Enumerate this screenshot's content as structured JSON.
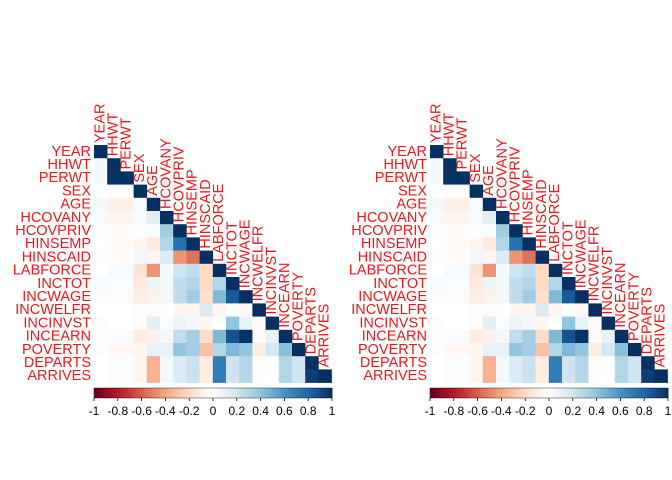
{
  "chart_data": [
    {
      "type": "heatmap",
      "variables": [
        "YEAR",
        "HHWT",
        "PERWT",
        "SEX",
        "AGE",
        "HCOVANY",
        "HCOVPRIV",
        "HINSEMP",
        "HINSCAID",
        "LABFORCE",
        "INCTOT",
        "INCWAGE",
        "INCWELFR",
        "INCINVST",
        "INCEARN",
        "POVERTY",
        "DEPARTS",
        "ARRIVES"
      ],
      "shape": "lower-triangle",
      "matrix": [
        [
          1
        ],
        [
          0.04,
          1
        ],
        [
          0.04,
          0.99,
          1
        ],
        [
          0.0,
          0.02,
          0.02,
          1
        ],
        [
          0.05,
          -0.08,
          -0.09,
          0.03,
          1
        ],
        [
          0.03,
          -0.05,
          -0.05,
          0.03,
          0.12,
          1
        ],
        [
          0.01,
          -0.02,
          -0.02,
          0.01,
          0.02,
          0.35,
          1
        ],
        [
          0.0,
          -0.01,
          -0.01,
          -0.05,
          -0.12,
          0.3,
          0.75,
          1
        ],
        [
          0.01,
          -0.02,
          -0.02,
          0.06,
          -0.05,
          0.15,
          -0.45,
          -0.55,
          1
        ],
        [
          0.0,
          0.03,
          0.03,
          -0.15,
          -0.45,
          0.05,
          0.2,
          0.25,
          -0.2,
          1
        ],
        [
          0.03,
          0.02,
          0.02,
          -0.12,
          0.08,
          0.06,
          0.25,
          0.3,
          -0.2,
          0.3,
          1
        ],
        [
          0.02,
          0.02,
          0.02,
          -0.1,
          -0.08,
          0.05,
          0.25,
          0.35,
          -0.18,
          0.45,
          0.85,
          1
        ],
        [
          0.0,
          0.0,
          0.0,
          0.02,
          -0.02,
          0.01,
          -0.05,
          -0.05,
          0.15,
          -0.05,
          0.0,
          -0.03,
          1
        ],
        [
          0.02,
          0.0,
          0.0,
          -0.02,
          0.12,
          0.02,
          0.08,
          0.05,
          -0.05,
          0.0,
          0.4,
          0.1,
          -0.01,
          1
        ],
        [
          0.02,
          0.02,
          0.02,
          -0.1,
          -0.08,
          0.05,
          0.25,
          0.35,
          -0.18,
          0.45,
          0.87,
          0.99,
          -0.03,
          0.1,
          1
        ],
        [
          0.02,
          -0.04,
          -0.04,
          -0.05,
          0.1,
          0.1,
          0.4,
          0.35,
          -0.3,
          0.3,
          0.45,
          0.4,
          -0.1,
          0.18,
          0.42,
          1
        ],
        [
          0.0,
          0.02,
          0.02,
          -0.05,
          -0.35,
          0.05,
          0.15,
          0.22,
          -0.1,
          0.7,
          0.2,
          0.3,
          -0.02,
          0.0,
          0.3,
          0.2,
          1
        ],
        [
          0.0,
          0.02,
          0.02,
          -0.05,
          -0.35,
          0.05,
          0.15,
          0.22,
          -0.1,
          0.7,
          0.2,
          0.3,
          -0.02,
          0.0,
          0.3,
          0.2,
          0.95,
          1
        ]
      ],
      "colorbar": {
        "range": [
          -1,
          1
        ],
        "tick_labels": [
          "-1",
          "-0.8",
          "-0.6",
          "-0.4",
          "-0.2",
          "0",
          "0.2",
          "0.4",
          "0.6",
          "0.8",
          "1"
        ],
        "tick_values": [
          -1,
          -0.8,
          -0.6,
          -0.4,
          -0.2,
          0,
          0.2,
          0.4,
          0.6,
          0.8,
          1
        ],
        "colors": [
          "#67001f",
          "#b2182b",
          "#d6604d",
          "#f4a582",
          "#fddbc7",
          "#ffffff",
          "#d1e5f0",
          "#92c5de",
          "#4393c3",
          "#2166ac",
          "#053061"
        ]
      },
      "label_color": "#e8181c"
    },
    {
      "type": "heatmap",
      "variables": [
        "YEAR",
        "HHWT",
        "PERWT",
        "SEX",
        "AGE",
        "HCOVANY",
        "HCOVPRIV",
        "HINSEMP",
        "HINSCAID",
        "LABFORCE",
        "INCTOT",
        "INCWAGE",
        "INCWELFR",
        "INCINVST",
        "INCEARN",
        "POVERTY",
        "DEPARTS",
        "ARRIVES"
      ],
      "shape": "lower-triangle",
      "matrix": [
        [
          1
        ],
        [
          0.04,
          1
        ],
        [
          0.04,
          0.99,
          1
        ],
        [
          0.0,
          0.02,
          0.02,
          1
        ],
        [
          0.05,
          -0.08,
          -0.09,
          0.03,
          1
        ],
        [
          0.03,
          -0.05,
          -0.05,
          0.03,
          0.12,
          1
        ],
        [
          0.01,
          -0.02,
          -0.02,
          0.01,
          0.02,
          0.35,
          1
        ],
        [
          0.0,
          -0.01,
          -0.01,
          -0.05,
          -0.12,
          0.3,
          0.75,
          1
        ],
        [
          0.01,
          -0.02,
          -0.02,
          0.06,
          -0.05,
          0.15,
          -0.45,
          -0.55,
          1
        ],
        [
          0.0,
          0.03,
          0.03,
          -0.15,
          -0.45,
          0.05,
          0.2,
          0.25,
          -0.2,
          1
        ],
        [
          0.03,
          0.02,
          0.02,
          -0.12,
          0.08,
          0.06,
          0.25,
          0.3,
          -0.2,
          0.3,
          1
        ],
        [
          0.02,
          0.02,
          0.02,
          -0.1,
          -0.08,
          0.05,
          0.25,
          0.35,
          -0.18,
          0.45,
          0.85,
          1
        ],
        [
          0.0,
          0.0,
          0.0,
          0.02,
          -0.02,
          0.01,
          -0.05,
          -0.05,
          0.15,
          -0.05,
          0.0,
          -0.03,
          1
        ],
        [
          0.02,
          0.0,
          0.0,
          -0.02,
          0.12,
          0.02,
          0.08,
          0.05,
          -0.05,
          0.0,
          0.4,
          0.1,
          -0.01,
          1
        ],
        [
          0.02,
          0.02,
          0.02,
          -0.1,
          -0.08,
          0.05,
          0.25,
          0.35,
          -0.18,
          0.45,
          0.87,
          0.99,
          -0.03,
          0.1,
          1
        ],
        [
          0.02,
          -0.04,
          -0.04,
          -0.05,
          0.1,
          0.1,
          0.4,
          0.35,
          -0.3,
          0.3,
          0.45,
          0.4,
          -0.1,
          0.18,
          0.42,
          1
        ],
        [
          0.0,
          0.02,
          0.02,
          -0.05,
          -0.35,
          0.05,
          0.15,
          0.22,
          -0.1,
          0.7,
          0.2,
          0.3,
          -0.02,
          0.0,
          0.3,
          0.2,
          1
        ],
        [
          0.0,
          0.02,
          0.02,
          -0.05,
          -0.35,
          0.05,
          0.15,
          0.22,
          -0.1,
          0.7,
          0.2,
          0.3,
          -0.02,
          0.0,
          0.3,
          0.2,
          0.95,
          1
        ]
      ],
      "colorbar": {
        "range": [
          -1,
          1
        ],
        "tick_labels": [
          "-1",
          "-0.8",
          "-0.6",
          "-0.4",
          "-0.2",
          "0",
          "0.2",
          "0.4",
          "0.6",
          "0.8",
          "1"
        ],
        "tick_values": [
          -1,
          -0.8,
          -0.6,
          -0.4,
          -0.2,
          0,
          0.2,
          0.4,
          0.6,
          0.8,
          1
        ],
        "colors": [
          "#67001f",
          "#b2182b",
          "#d6604d",
          "#f4a582",
          "#fddbc7",
          "#ffffff",
          "#d1e5f0",
          "#92c5de",
          "#4393c3",
          "#2166ac",
          "#053061"
        ]
      },
      "label_color": "#e8181c"
    }
  ]
}
